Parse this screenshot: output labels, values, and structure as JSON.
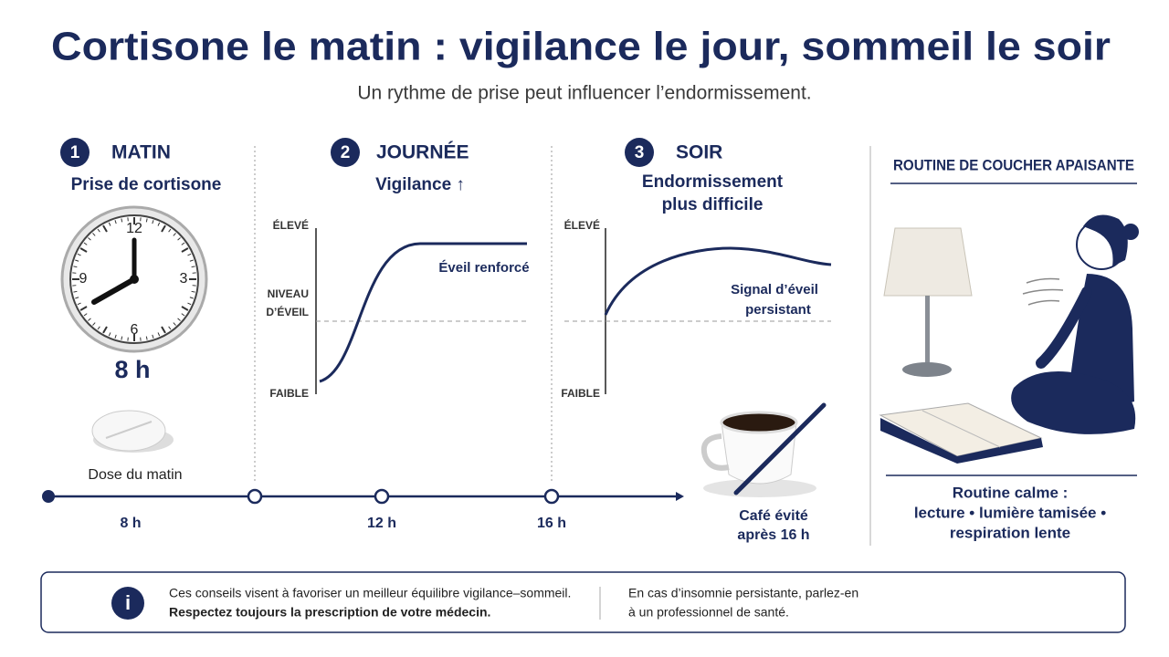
{
  "header": {
    "title": "Cortisone le matin : vigilance le jour, sommeil le soir",
    "subtitle": "Un rythme de prise peut influencer l’endormissement."
  },
  "morning": {
    "number": "1",
    "heading": "MATIN",
    "subheading": "Prise de cortisone",
    "clock_numbers": [
      "12",
      "3",
      "6",
      "9"
    ],
    "time": "8 h",
    "pill_caption": "Dose du matin"
  },
  "day": {
    "number": "2",
    "heading": "JOURNÉE",
    "subheading": "Vigilance ↑",
    "axis_high": "ÉLEVÉ",
    "axis_title": [
      "NIVEAU",
      "D’ÉVEIL"
    ],
    "axis_low": "FAIBLE",
    "curve_label": "Éveil renforcé"
  },
  "evening": {
    "number": "3",
    "heading": "SOIR",
    "subheading": [
      "Endormissement",
      "plus difficile"
    ],
    "axis_high": "ÉLEVÉ",
    "axis_low": "FAIBLE",
    "curve_label": [
      "Signal d’éveil",
      "persistant"
    ],
    "coffee_caption": [
      "Café évité",
      "après 16 h"
    ]
  },
  "timeline": {
    "labels": [
      "8 h",
      "12 h",
      "16 h"
    ]
  },
  "routine": {
    "title": "ROUTINE DE COUCHER APAISANTE",
    "caption": [
      "Routine calme :",
      "lecture • lumière tamisée •",
      "respiration lente"
    ]
  },
  "footer": {
    "icon": "i",
    "note": [
      "Ces conseils visent à favoriser un meilleur équilibre vigilance–sommeil.",
      "Respectez toujours la prescription de votre médecin."
    ],
    "advice": [
      "En cas d’insomnie persistante, parlez-en",
      "à un professionnel de santé."
    ]
  }
}
